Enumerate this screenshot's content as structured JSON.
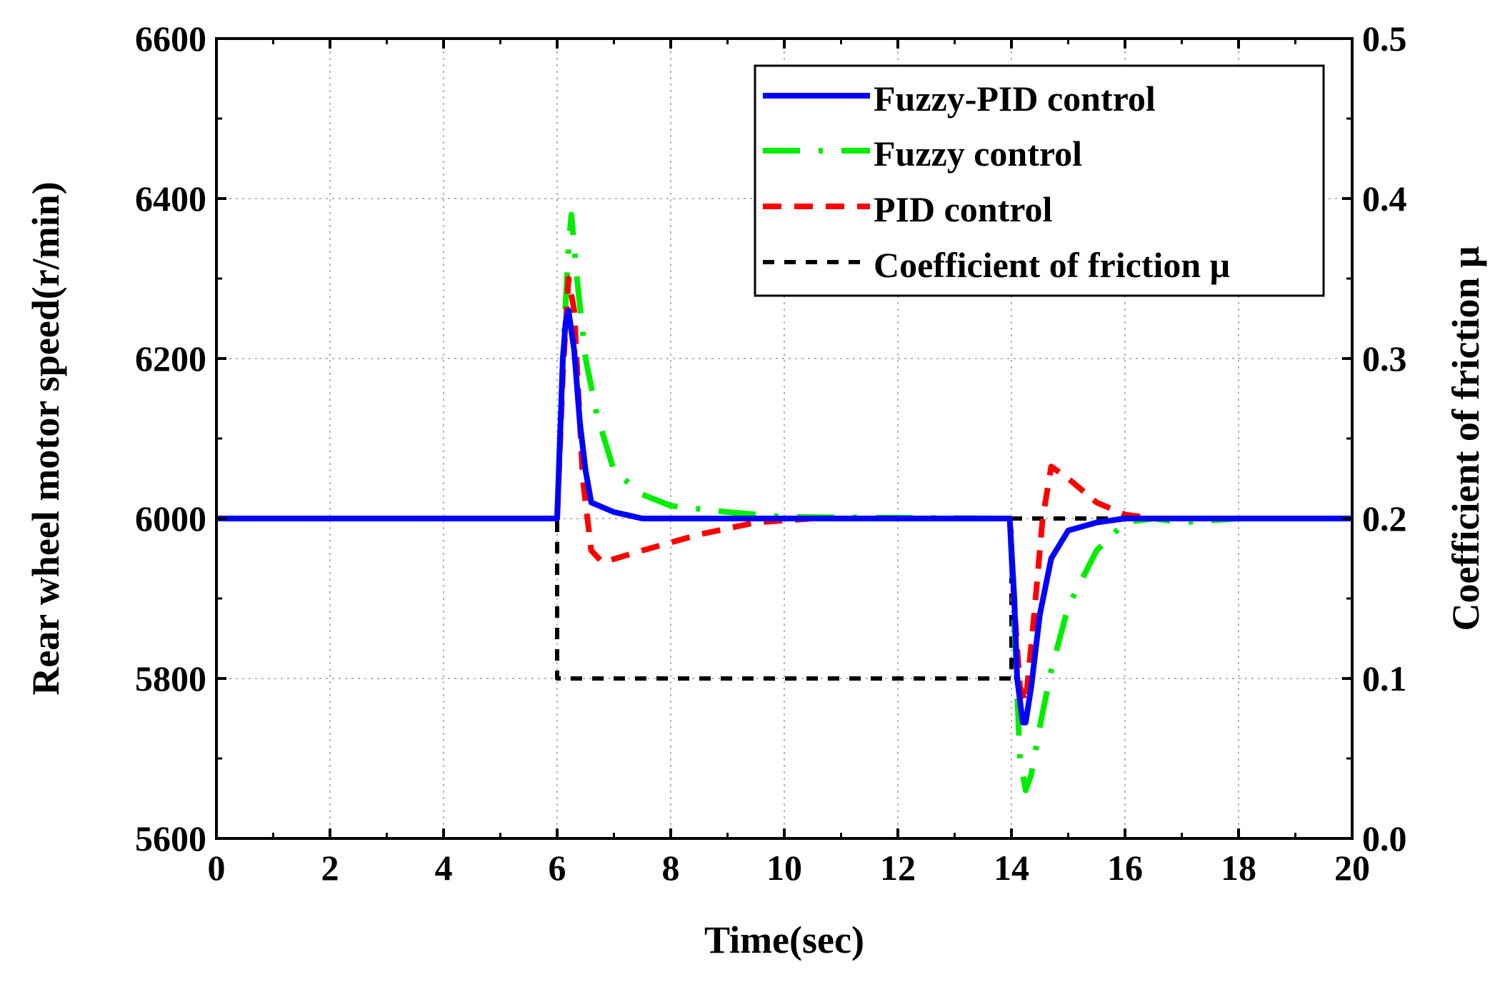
{
  "chart_data": {
    "type": "line",
    "xlabel": "Time(sec)",
    "ylabel": "Rear wheel motor speed(r/min)",
    "y2label": "Coefficient of friction μ",
    "xlim": [
      0,
      20
    ],
    "ylim": [
      5600,
      6600
    ],
    "y2lim": [
      0.0,
      0.5
    ],
    "xticks": [
      "0",
      "2",
      "4",
      "6",
      "8",
      "10",
      "12",
      "14",
      "16",
      "18",
      "20"
    ],
    "yticks": [
      "5600",
      "5800",
      "6000",
      "6200",
      "6400",
      "6600"
    ],
    "y2ticks": [
      "0.0",
      "0.1",
      "0.2",
      "0.3",
      "0.4",
      "0.5"
    ],
    "grid": true,
    "legend_position": "top-right",
    "series": [
      {
        "name": "Fuzzy-PID control",
        "color": "#0000ff",
        "style": "solid",
        "axis": "left",
        "x": [
          0,
          6.0,
          6.05,
          6.1,
          6.15,
          6.2,
          6.3,
          6.4,
          6.5,
          6.6,
          7.0,
          7.5,
          10,
          13.97,
          14.05,
          14.1,
          14.2,
          14.25,
          14.35,
          14.5,
          14.7,
          15.0,
          15.5,
          16.0,
          20
        ],
        "values": [
          6000,
          6000,
          6100,
          6200,
          6245,
          6260,
          6210,
          6120,
          6060,
          6020,
          6008,
          6000,
          6000,
          6000,
          5900,
          5800,
          5745,
          5745,
          5790,
          5880,
          5950,
          5985,
          5995,
          6000,
          6000
        ]
      },
      {
        "name": "Fuzzy control",
        "color": "#00ee00",
        "style": "dashdot",
        "axis": "left",
        "x": [
          0,
          6.0,
          6.1,
          6.2,
          6.25,
          6.35,
          6.5,
          6.7,
          7.0,
          7.5,
          8.0,
          9.0,
          10,
          13.97,
          14.05,
          14.15,
          14.25,
          14.35,
          14.5,
          14.7,
          15.0,
          15.5,
          16.0,
          16.5,
          17.0,
          18.0,
          20
        ],
        "values": [
          6000,
          6000,
          6200,
          6340,
          6380,
          6300,
          6200,
          6130,
          6060,
          6030,
          6016,
          6008,
          6002,
          6000,
          5870,
          5700,
          5660,
          5680,
          5740,
          5810,
          5890,
          5960,
          5995,
          6000,
          5995,
          6000,
          6000
        ]
      },
      {
        "name": "PID control",
        "color": "#ff0000",
        "style": "dashed",
        "axis": "left",
        "x": [
          0,
          6.0,
          6.1,
          6.2,
          6.3,
          6.45,
          6.6,
          6.8,
          7.5,
          8.5,
          9.5,
          10.5,
          13.97,
          14.05,
          14.15,
          14.25,
          14.4,
          14.55,
          14.7,
          15.0,
          15.5,
          16.0,
          16.5,
          17.0,
          20
        ],
        "values": [
          6000,
          6000,
          6180,
          6300,
          6260,
          6050,
          5960,
          5945,
          5960,
          5980,
          5995,
          6000,
          6000,
          5890,
          5790,
          5770,
          5880,
          6000,
          6065,
          6050,
          6020,
          6005,
          6000,
          6000,
          6000
        ]
      },
      {
        "name": "Coefficient of friction μ",
        "color": "#000000",
        "style": "short-dash",
        "axis": "right",
        "x": [
          0,
          6.0,
          6.0,
          14.0,
          14.0,
          20
        ],
        "values": [
          0.2,
          0.2,
          0.1,
          0.1,
          0.2,
          0.2
        ]
      }
    ]
  }
}
